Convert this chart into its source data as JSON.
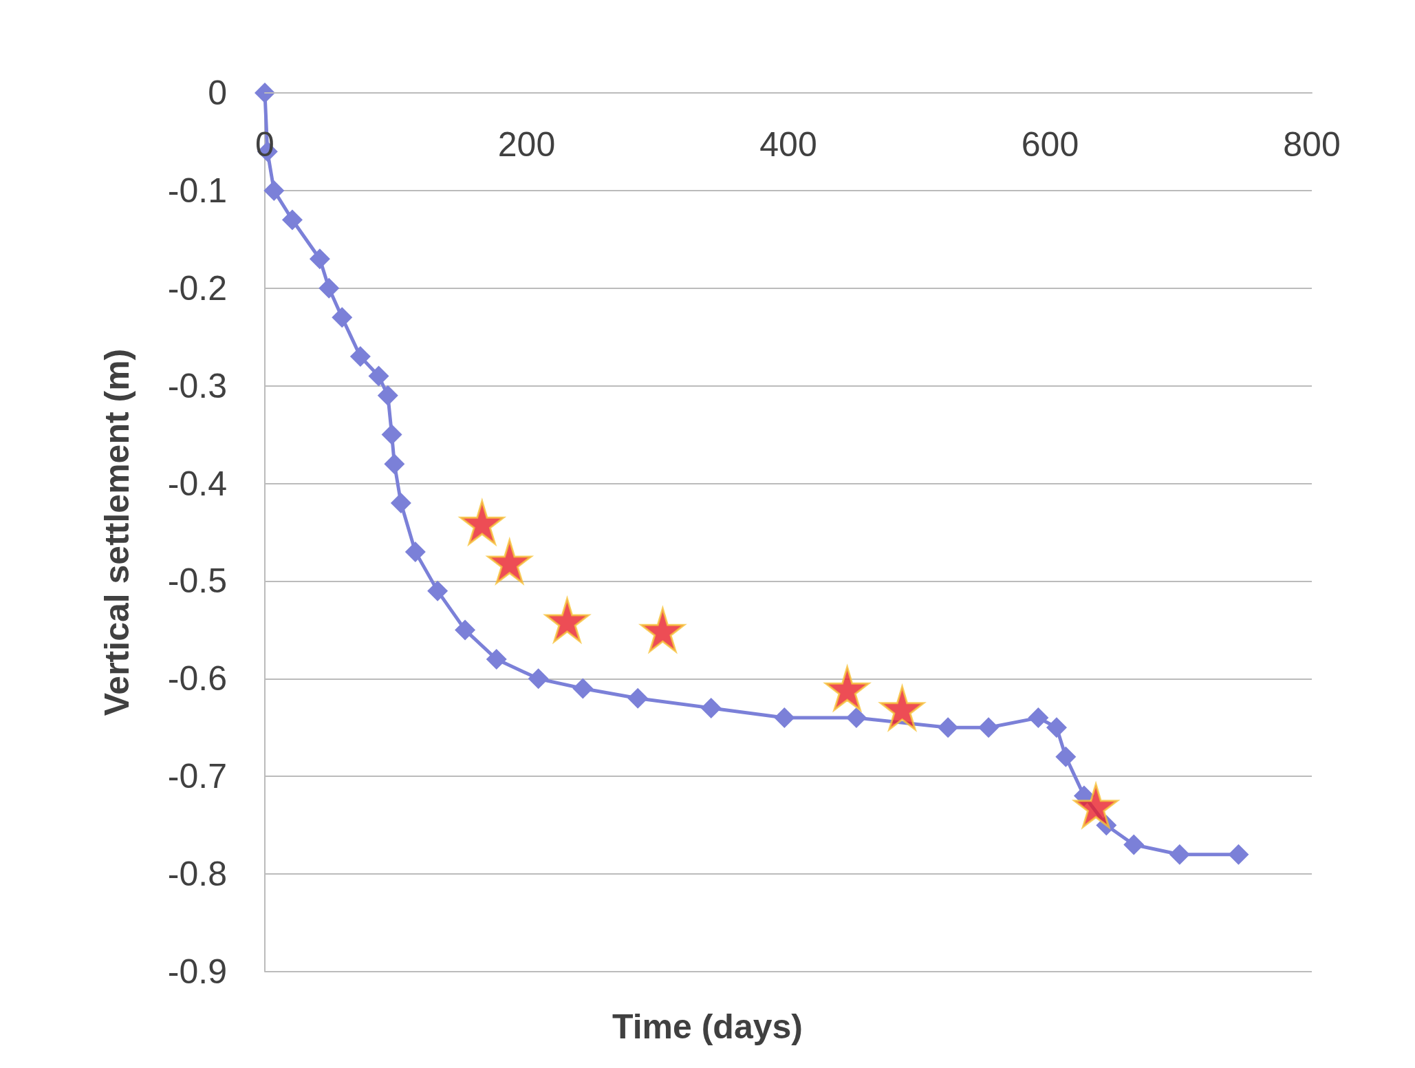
{
  "chart_data": {
    "type": "line",
    "xlabel": "Time (days)",
    "ylabel": "Vertical settlement (m)",
    "xlim": [
      0,
      800
    ],
    "xticks": [
      0,
      200,
      400,
      600,
      800
    ],
    "ylim": [
      -0.9,
      0
    ],
    "yticks": [
      -0.9,
      -0.8,
      -0.7,
      -0.6,
      -0.5,
      -0.4,
      -0.3,
      -0.2,
      -0.1,
      0
    ],
    "grid": "y",
    "legend": false,
    "series": [
      {
        "marker": "diamond",
        "color": "#7b80d8",
        "x": [
          0,
          2,
          7,
          21,
          42,
          49,
          59,
          73,
          87,
          94,
          97,
          99,
          104,
          115,
          132,
          153,
          177,
          209,
          243,
          285,
          341,
          397,
          452,
          494,
          522,
          553,
          591,
          605,
          612,
          626,
          643,
          664,
          699,
          744
        ],
        "values": [
          0,
          -0.06,
          -0.1,
          -0.13,
          -0.17,
          -0.2,
          -0.23,
          -0.27,
          -0.29,
          -0.31,
          -0.35,
          -0.38,
          -0.42,
          -0.47,
          -0.51,
          -0.55,
          -0.58,
          -0.6,
          -0.61,
          -0.62,
          -0.63,
          -0.64,
          -0.64,
          null,
          -0.65,
          -0.65,
          -0.64,
          -0.65,
          -0.68,
          -0.72,
          -0.75,
          -0.77,
          -0.78,
          -0.78
        ]
      },
      {
        "type": "scatter",
        "marker": "star",
        "color": "#e8202a",
        "x": [
          166,
          187,
          231,
          304,
          445,
          487,
          635
        ],
        "values": [
          -0.44,
          -0.48,
          -0.54,
          -0.55,
          -0.61,
          -0.63,
          -0.73
        ]
      }
    ]
  }
}
